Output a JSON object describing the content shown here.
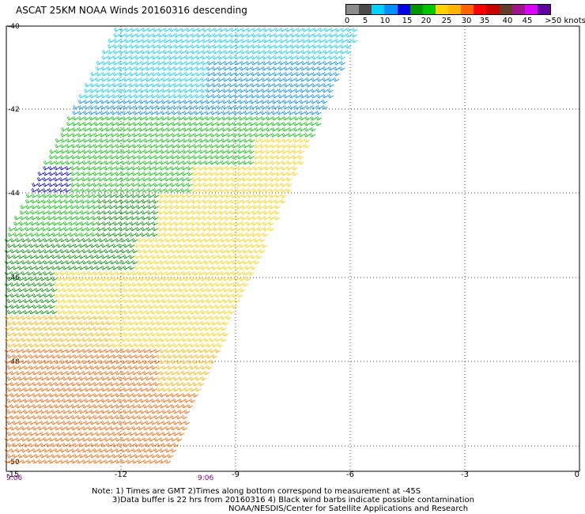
{
  "title": "ASCAT 25KM NOAA Winds 20160316 descending",
  "legend": {
    "colors": [
      "#8c8c8c",
      "#4a4a4a",
      "#00d2ff",
      "#0091ff",
      "#0000e6",
      "#009600",
      "#00c800",
      "#ffd200",
      "#ffb400",
      "#ff6400",
      "#ff0000",
      "#c80000",
      "#643c28",
      "#a0148c",
      "#dc00ff",
      "#6400a0"
    ],
    "ticks": [
      "0",
      "5",
      "10",
      "15",
      "20",
      "25",
      "30",
      "35",
      "40",
      "45",
      ">50 knots"
    ]
  },
  "map": {
    "lat_labels": [
      "-40",
      "-42",
      "-44",
      "-46",
      "-48",
      "-50"
    ],
    "lon_labels": [
      "-15",
      "-12",
      "-9",
      "-6",
      "-3",
      "0"
    ],
    "time_labels": [
      "9:06",
      "9:06"
    ]
  },
  "notes": {
    "line1": "Note: 1) Times are GMT 2)Times along bottom correspond to measurement at -45S",
    "line2": "3)Data buffer is 22 hrs from 20160316 4) Black wind barbs indicate possible contamination",
    "line3": "NOAA/NESDIS/Center for Satellite Applications and Research"
  }
}
